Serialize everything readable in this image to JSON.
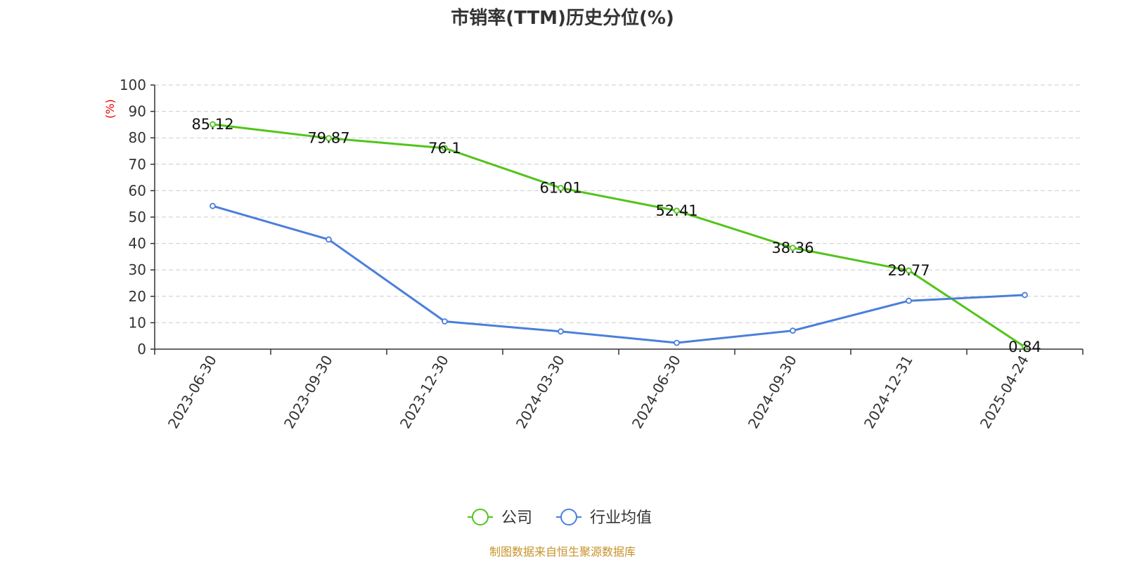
{
  "chart_data": {
    "type": "line",
    "title": "市销率(TTM)历史分位(%)",
    "y_unit_label": "(%)",
    "categories": [
      "2023-06-30",
      "2023-09-30",
      "2023-12-30",
      "2024-03-30",
      "2024-06-30",
      "2024-09-30",
      "2024-12-31",
      "2025-04-24"
    ],
    "series": [
      {
        "name": "公司",
        "color": "#52c41a",
        "values": [
          85.12,
          79.87,
          76.1,
          61.01,
          52.41,
          38.36,
          29.77,
          0.84
        ],
        "show_labels": true
      },
      {
        "name": "行业均值",
        "color": "#4a7fdb",
        "values": [
          54.2,
          41.5,
          10.5,
          6.7,
          2.4,
          7.0,
          18.3,
          20.5
        ],
        "show_labels": false
      }
    ],
    "ylim": [
      0,
      100
    ],
    "yticks": [
      0,
      10,
      20,
      30,
      40,
      50,
      60,
      70,
      80,
      90,
      100
    ],
    "grid": true,
    "legend_position": "bottom-center",
    "source": "制图数据来自恒生聚源数据库",
    "colors": {
      "axis": "#333333",
      "grid": "#cccccc",
      "unit": "#e60000",
      "source": "#c8922a"
    }
  }
}
